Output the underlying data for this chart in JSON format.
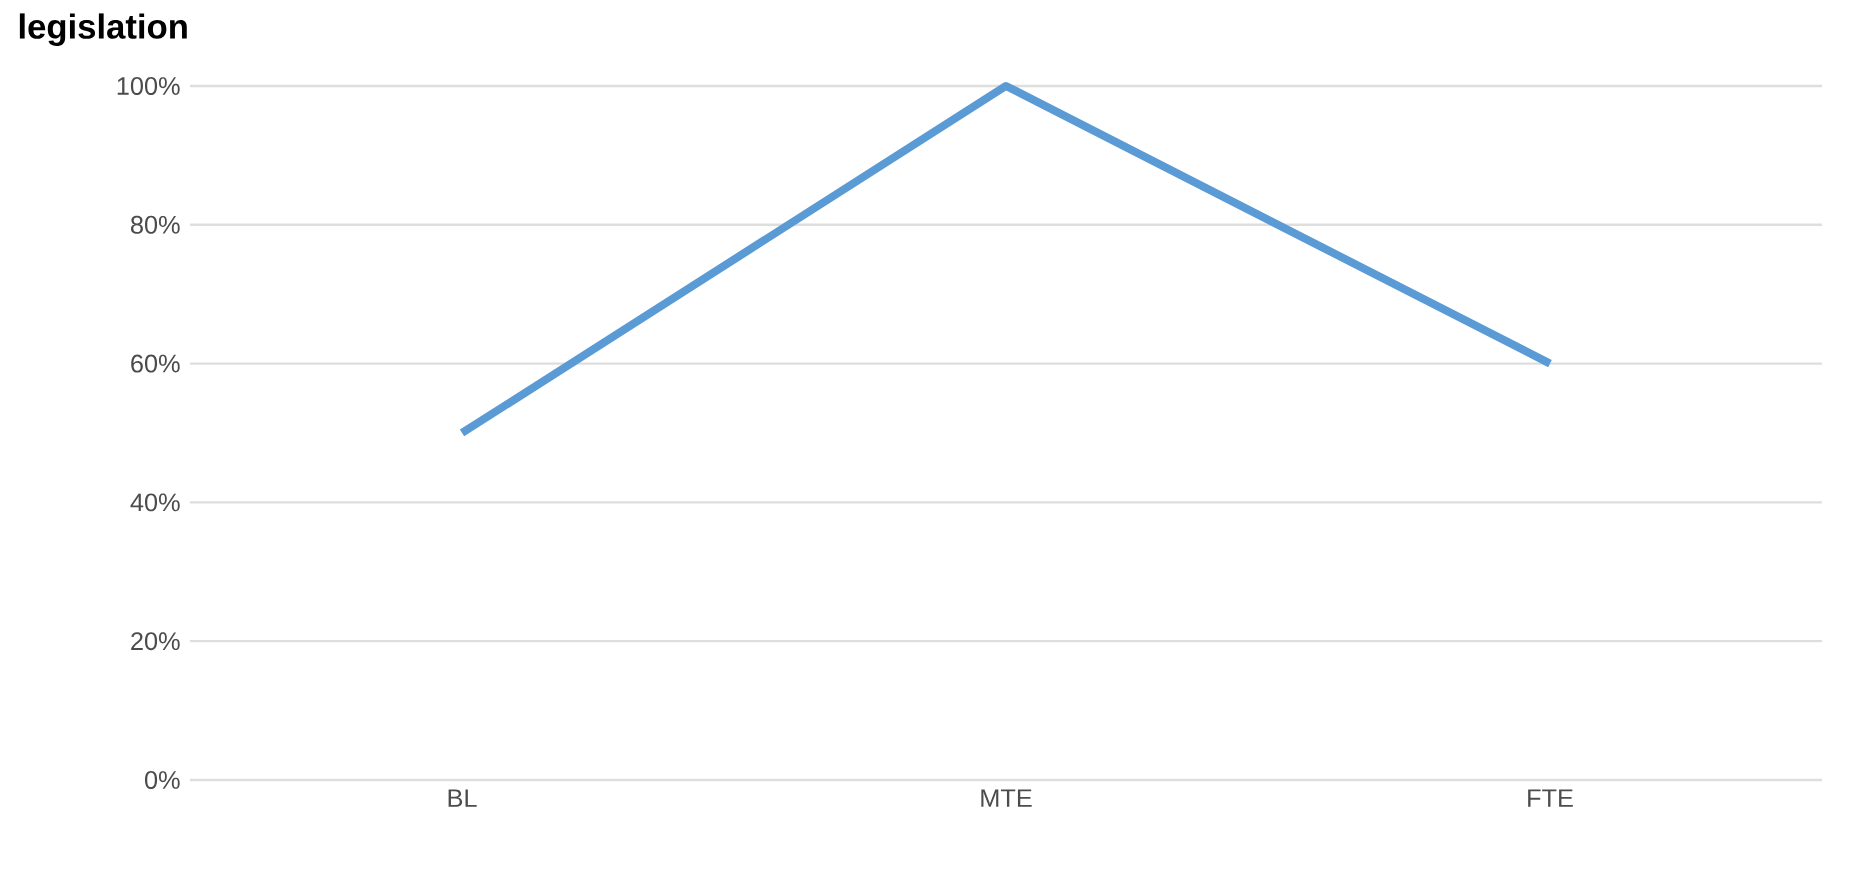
{
  "chart_data": {
    "type": "line",
    "title": "legislation",
    "categories": [
      "BL",
      "MTE",
      "FTE"
    ],
    "series": [
      {
        "color": "#5b9bd5",
        "values": [
          50,
          100,
          60
        ]
      }
    ],
    "ylim": [
      0,
      100
    ],
    "yticks": [
      {
        "value": 0,
        "label": "0%"
      },
      {
        "value": 20,
        "label": "20%"
      },
      {
        "value": 40,
        "label": "40%"
      },
      {
        "value": 60,
        "label": "60%"
      },
      {
        "value": 80,
        "label": "80%"
      },
      {
        "value": 100,
        "label": "100%"
      }
    ],
    "grid": "y",
    "marker": "none",
    "line_style": "solid"
  }
}
